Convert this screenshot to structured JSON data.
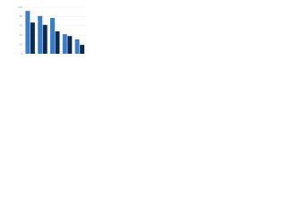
{
  "chart_data": {
    "type": "bar",
    "categories": [
      null,
      null,
      null,
      null,
      null
    ],
    "series": [
      {
        "name": null,
        "color": "#3a7cc6",
        "values": [
          92,
          81,
          77,
          42,
          31
        ]
      },
      {
        "name": null,
        "color": "#10294a",
        "values": [
          67,
          62,
          48,
          38,
          19
        ]
      }
    ],
    "ylim": [
      0,
      100
    ],
    "yticks": [
      0,
      20,
      40,
      60,
      80,
      100
    ],
    "grid": true
  }
}
